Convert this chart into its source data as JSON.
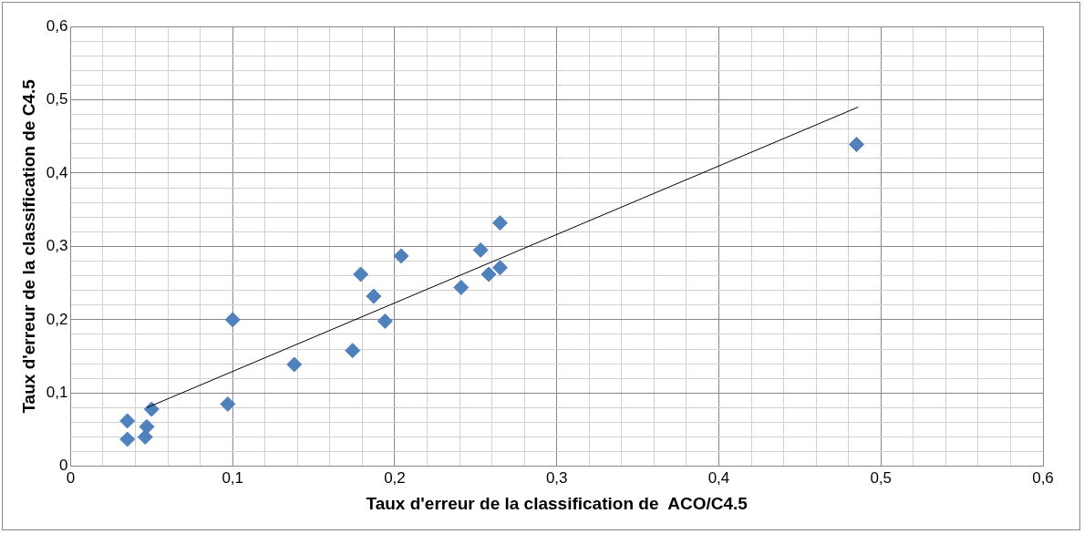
{
  "chart_data": {
    "type": "scatter",
    "xlabel": "Taux d'erreur de la classification de  ACO/C4.5",
    "ylabel": "Taux d'erreur de la classification de C4.5",
    "marker": "diamond",
    "grid": true,
    "legend": false,
    "xlim": [
      0,
      0.6
    ],
    "ylim": [
      0,
      0.6
    ],
    "xticks": [
      0,
      {
        "value": 0.02,
        "label": null
      },
      {
        "value": 0.04,
        "label": null
      },
      {
        "value": 0.06,
        "label": null
      },
      {
        "value": 0.08,
        "label": null
      },
      {
        "value": 0.1,
        "label": "0,1"
      },
      {
        "value": 0.12,
        "label": null
      },
      {
        "value": 0.14,
        "label": null
      },
      {
        "value": 0.16,
        "label": null
      },
      {
        "value": 0.18,
        "label": null
      },
      {
        "value": 0.2,
        "label": "0,2"
      },
      {
        "value": 0.22,
        "label": null
      },
      {
        "value": 0.24,
        "label": null
      },
      {
        "value": 0.26,
        "label": null
      },
      {
        "value": 0.28,
        "label": null
      },
      {
        "value": 0.3,
        "label": "0,3"
      },
      {
        "value": 0.32,
        "label": null
      },
      {
        "value": 0.34,
        "label": null
      },
      {
        "value": 0.36,
        "label": null
      },
      {
        "value": 0.38,
        "label": null
      },
      {
        "value": 0.4,
        "label": "0,4"
      },
      {
        "value": 0.42,
        "label": null
      },
      {
        "value": 0.44,
        "label": null
      },
      {
        "value": 0.46,
        "label": null
      },
      {
        "value": 0.48,
        "label": null
      },
      {
        "value": 0.5,
        "label": "0,5"
      },
      {
        "value": 0.52,
        "label": null
      },
      {
        "value": 0.54,
        "label": null
      },
      {
        "value": 0.56,
        "label": null
      },
      {
        "value": 0.58,
        "label": null
      },
      {
        "value": 0.6,
        "label": "0,6"
      }
    ],
    "yticks": [
      0,
      {
        "value": 0.02,
        "label": null
      },
      {
        "value": 0.04,
        "label": null
      },
      {
        "value": 0.06,
        "label": null
      },
      {
        "value": 0.08,
        "label": null
      },
      {
        "value": 0.1,
        "label": "0,1"
      },
      {
        "value": 0.12,
        "label": null
      },
      {
        "value": 0.14,
        "label": null
      },
      {
        "value": 0.16,
        "label": null
      },
      {
        "value": 0.18,
        "label": null
      },
      {
        "value": 0.2,
        "label": "0,2"
      },
      {
        "value": 0.22,
        "label": null
      },
      {
        "value": 0.24,
        "label": null
      },
      {
        "value": 0.26,
        "label": null
      },
      {
        "value": 0.28,
        "label": null
      },
      {
        "value": 0.3,
        "label": "0,3"
      },
      {
        "value": 0.32,
        "label": null
      },
      {
        "value": 0.34,
        "label": null
      },
      {
        "value": 0.36,
        "label": null
      },
      {
        "value": 0.38,
        "label": null
      },
      {
        "value": 0.4,
        "label": "0,4"
      },
      {
        "value": 0.42,
        "label": null
      },
      {
        "value": 0.44,
        "label": null
      },
      {
        "value": 0.46,
        "label": null
      },
      {
        "value": 0.48,
        "label": null
      },
      {
        "value": 0.5,
        "label": "0,5"
      },
      {
        "value": 0.52,
        "label": null
      },
      {
        "value": 0.54,
        "label": null
      },
      {
        "value": 0.56,
        "label": null
      },
      {
        "value": 0.58,
        "label": null
      },
      {
        "value": 0.6,
        "label": "0,6"
      }
    ],
    "series": [
      {
        "type": "scatter",
        "color": "#4f81bd",
        "x": [
          0.035,
          0.035,
          0.05,
          0.047,
          0.046,
          0.097,
          0.1,
          0.138,
          0.174,
          0.179,
          0.187,
          0.194,
          0.204,
          0.241,
          0.253,
          0.258,
          0.265,
          0.265,
          0.485
        ],
        "values": [
          0.062,
          0.037,
          0.078,
          0.054,
          0.04,
          0.085,
          0.2,
          0.139,
          0.158,
          0.262,
          0.232,
          0.198,
          0.287,
          0.244,
          0.295,
          0.262,
          0.271,
          0.332,
          0.439
        ]
      },
      {
        "type": "line",
        "color": "#000000",
        "marker": "none",
        "x": [
          0.047,
          0.486
        ],
        "values": [
          0.08,
          0.49
        ]
      }
    ]
  }
}
